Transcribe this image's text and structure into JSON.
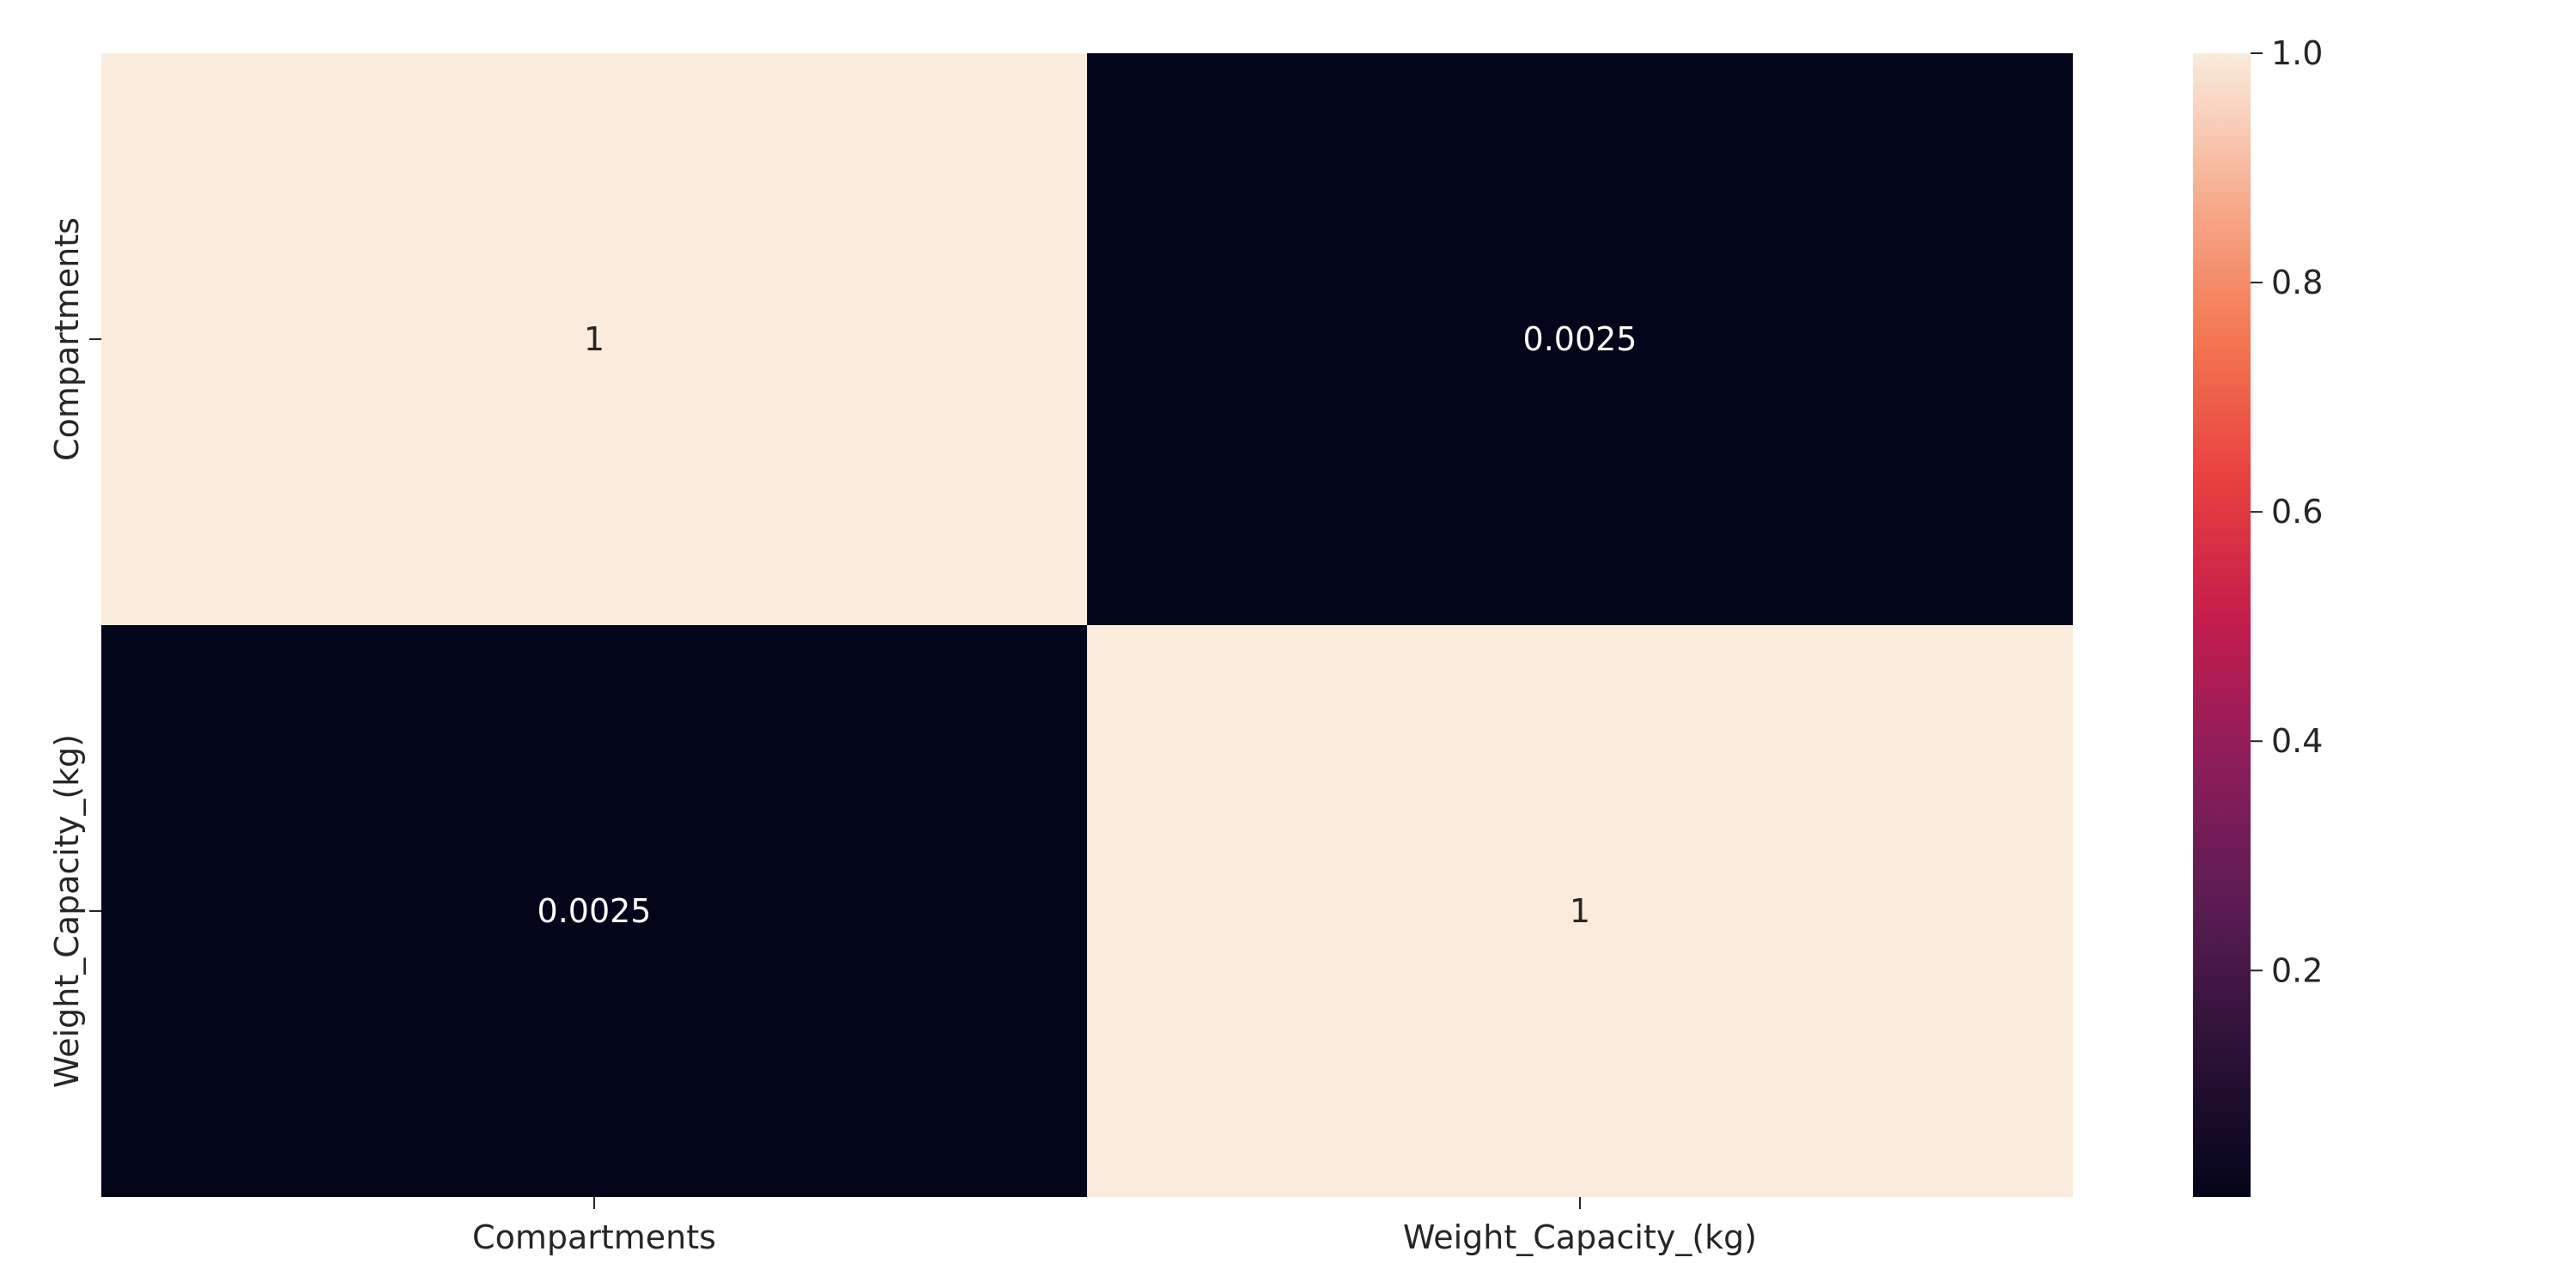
{
  "chart_data": {
    "type": "heatmap",
    "rows": [
      "Compartments",
      "Weight_Capacity_(kg)"
    ],
    "columns": [
      "Compartments",
      "Weight_Capacity_(kg)"
    ],
    "values": [
      [
        1,
        0.0025
      ],
      [
        0.0025,
        1
      ]
    ],
    "annotations": [
      [
        "1",
        "0.0025"
      ],
      [
        "0.0025",
        "1"
      ]
    ],
    "colorbar": {
      "range": [
        0.0025,
        1.0
      ],
      "ticks": [
        0.2,
        0.4,
        0.6,
        0.8,
        1.0
      ],
      "tick_labels": [
        "0.2",
        "0.4",
        "0.6",
        "0.8",
        "1.0"
      ],
      "colormap": "rocket",
      "low_color": "#03051a",
      "high_color": "#faebdd"
    },
    "title": "",
    "xlabel": "",
    "ylabel": ""
  }
}
